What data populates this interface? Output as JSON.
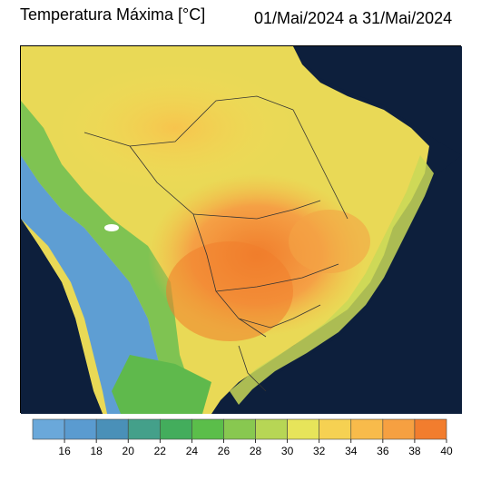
{
  "header": {
    "title_left": "Temperatura Máxima [°C]",
    "title_right": "01/Mai/2024 a 31/Mai/2024"
  },
  "map": {
    "background_ocean": "#0d1f3c",
    "land_color_hot": "#f07d2c",
    "land_color_warm": "#f5d04f",
    "land_color_mild": "#78c24e",
    "land_color_cool": "#5a9fd6"
  },
  "colorbar": {
    "colors": [
      "#6aa8da",
      "#5a9bd0",
      "#4a90b8",
      "#44a08a",
      "#43ad5c",
      "#5bbe4a",
      "#88c850",
      "#b7d655",
      "#e7e45a",
      "#f6d152",
      "#f8bb4b",
      "#f6a041",
      "#f27d2e"
    ],
    "ticks": [
      "16",
      "18",
      "20",
      "22",
      "24",
      "26",
      "28",
      "30",
      "32",
      "34",
      "36",
      "38",
      "40"
    ]
  }
}
